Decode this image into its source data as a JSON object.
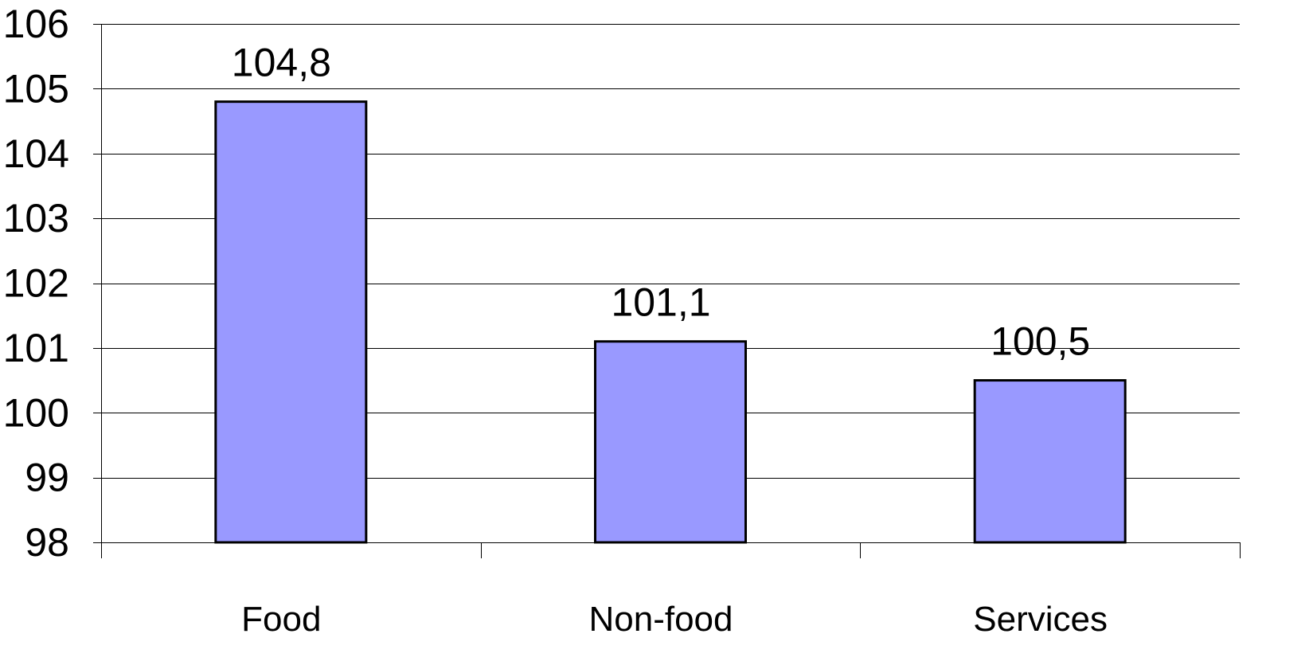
{
  "chart_data": {
    "type": "bar",
    "categories": [
      "Food",
      "Non-food",
      "Services"
    ],
    "values": [
      104.8,
      101.1,
      100.5
    ],
    "data_labels": [
      "104,8",
      "101,1",
      "100,5"
    ],
    "title": "",
    "xlabel": "",
    "ylabel": "",
    "ylim": [
      98,
      106
    ],
    "yticks": [
      98,
      99,
      100,
      101,
      102,
      103,
      104,
      105,
      106
    ],
    "grid": true,
    "legend": "none",
    "bar_color": "#9999FF",
    "bar_edge_color": "#000000"
  }
}
